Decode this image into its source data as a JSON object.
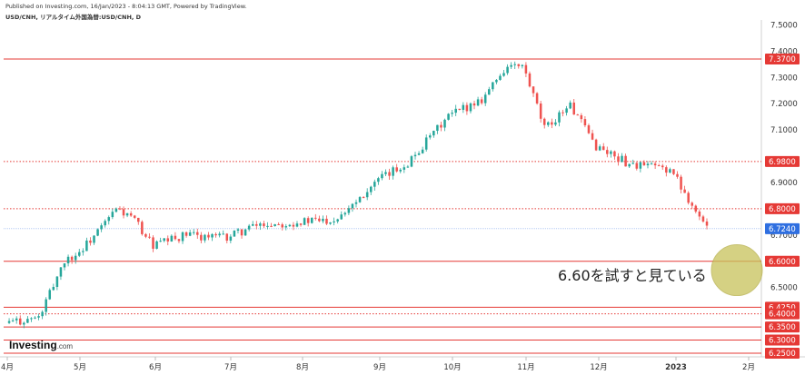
{
  "header": {
    "published": "Published on Investing.com, 16/Jan/2023 - 8:04:13 GMT, Powered by TradingView.",
    "symbol": "USD/CNH, リアルタイム外国為替:USD/CNH, D"
  },
  "logo": {
    "brand": "Investing",
    "suffix": ".com"
  },
  "annotation": "6.60を試すと見ている",
  "colors": {
    "up": "#26a69a",
    "down": "#ef5350",
    "support_line": "#e53935",
    "current_price_bg": "#2f6fe0",
    "level_bg": "#e53935",
    "target_circle": "#c8c25a"
  },
  "chart_data": {
    "type": "candlestick",
    "ylim": [
      6.24,
      7.52
    ],
    "y_ticks": [
      "7.5000",
      "7.4000",
      "7.3000",
      "7.2000",
      "7.1000",
      "6.9000",
      "6.7000",
      "6.5000",
      "6.4000",
      "6.3000"
    ],
    "x_ticks": [
      "4月",
      "5月",
      "6月",
      "7月",
      "8月",
      "9月",
      "10月",
      "11月",
      "12月",
      "2023",
      "2月"
    ],
    "horizontal_levels": [
      {
        "label": "7.3700",
        "value": 7.37,
        "style": "solid"
      },
      {
        "label": "6.9800",
        "value": 6.98,
        "style": "dotted"
      },
      {
        "label": "6.8000",
        "value": 6.8,
        "style": "dotted"
      },
      {
        "label": "6.6000",
        "value": 6.6,
        "style": "solid"
      },
      {
        "label": "6.4250",
        "value": 6.425,
        "style": "solid"
      },
      {
        "label": "6.4000",
        "value": 6.4,
        "style": "dotted"
      },
      {
        "label": "6.3500",
        "value": 6.35,
        "style": "solid"
      },
      {
        "label": "6.3000",
        "value": 6.3,
        "style": "solid"
      },
      {
        "label": "6.2500",
        "value": 6.25,
        "style": "solid"
      }
    ],
    "current_price": {
      "label": "6.7240",
      "value": 6.724
    },
    "target_zone": {
      "value": 6.58
    },
    "series": [
      {
        "date": "2022-04",
        "close": 6.365
      },
      {
        "date": "2022-04-15",
        "close": 6.385
      },
      {
        "date": "2022-04-25",
        "close": 6.6
      },
      {
        "date": "2022-05-01",
        "close": 6.63
      },
      {
        "date": "2022-05-10",
        "close": 6.72
      },
      {
        "date": "2022-05-17",
        "close": 6.8
      },
      {
        "date": "2022-05-24",
        "close": 6.76
      },
      {
        "date": "2022-06-01",
        "close": 6.66
      },
      {
        "date": "2022-06-15",
        "close": 6.7
      },
      {
        "date": "2022-07-01",
        "close": 6.69
      },
      {
        "date": "2022-07-15",
        "close": 6.74
      },
      {
        "date": "2022-08-01",
        "close": 6.75
      },
      {
        "date": "2022-08-15",
        "close": 6.76
      },
      {
        "date": "2022-09-01",
        "close": 6.9
      },
      {
        "date": "2022-09-15",
        "close": 6.98
      },
      {
        "date": "2022-10-01",
        "close": 7.15
      },
      {
        "date": "2022-10-15",
        "close": 7.22
      },
      {
        "date": "2022-10-25",
        "close": 7.34
      },
      {
        "date": "2022-11-01",
        "close": 7.34
      },
      {
        "date": "2022-11-10",
        "close": 7.1
      },
      {
        "date": "2022-11-20",
        "close": 7.2
      },
      {
        "date": "2022-12-01",
        "close": 7.04
      },
      {
        "date": "2022-12-15",
        "close": 6.97
      },
      {
        "date": "2023-01-01",
        "close": 6.95
      },
      {
        "date": "2023-01-16",
        "close": 6.724
      }
    ]
  }
}
